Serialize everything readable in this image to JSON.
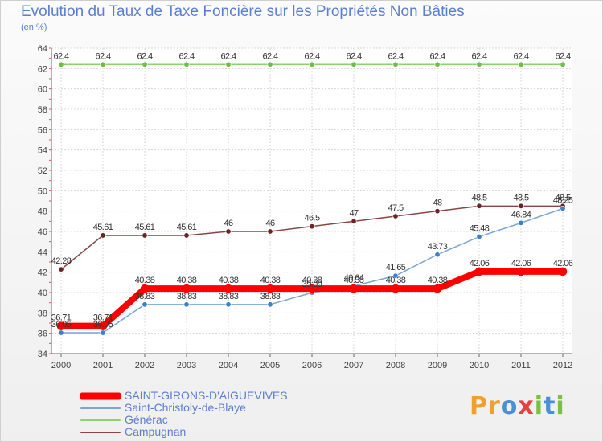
{
  "title": "Evolution du Taux de Taxe Foncière sur les Propriétés Non Bâties",
  "subtitle": "(en %)",
  "logo": {
    "parts": [
      "P",
      "r",
      "o",
      "x",
      "i",
      "t",
      "i"
    ]
  },
  "chart_data": {
    "type": "line",
    "title": "Evolution du Taux de Taxe Foncière sur les Propriétés Non Bâties",
    "ylabel": "(en %)",
    "xlabel": "",
    "ylim": [
      34,
      64
    ],
    "yticks": [
      34,
      36,
      38,
      40,
      42,
      44,
      46,
      48,
      50,
      52,
      54,
      56,
      58,
      60,
      62,
      64
    ],
    "grid": true,
    "legend_position": "bottom-left",
    "x": [
      "2000",
      "2001",
      "2002",
      "2003",
      "2004",
      "2005",
      "2006",
      "2007",
      "2008",
      "2009",
      "2010",
      "2011",
      "2012"
    ],
    "series": [
      {
        "name": "SAINT-GIRONS-D'AIGUEVIVES",
        "color": "#ff0000",
        "marker_color": "#ff0000",
        "width": 8,
        "values": [
          36.71,
          36.71,
          40.38,
          40.38,
          40.38,
          40.38,
          40.38,
          40.38,
          40.38,
          40.38,
          42.06,
          42.06,
          42.06
        ],
        "labels": [
          "36.71",
          "36.71",
          "40.38",
          "40.38",
          "40.38",
          "40.38",
          "40.38",
          "40.38",
          "40.38",
          "40.38",
          "42.06",
          "42.06",
          "42.06"
        ]
      },
      {
        "name": "Saint-Christoly-de-Blaye",
        "color": "#7aa6d6",
        "marker_color": "#3a7fd0",
        "width": 1.5,
        "values": [
          36.05,
          36.05,
          38.83,
          38.83,
          38.83,
          38.83,
          39.99,
          40.64,
          41.65,
          43.73,
          45.48,
          46.84,
          48.25
        ],
        "labels": [
          "36.05",
          "36.05",
          "38.83",
          "38.83",
          "38.83",
          "38.83",
          "39.99",
          "40.64",
          "41.65",
          "43.73",
          "45.48",
          "46.84",
          "48.25"
        ]
      },
      {
        "name": "Générac",
        "color": "#8fd16a",
        "marker_color": "#6cc040",
        "width": 1.5,
        "values": [
          62.4,
          62.4,
          62.4,
          62.4,
          62.4,
          62.4,
          62.4,
          62.4,
          62.4,
          62.4,
          62.4,
          62.4,
          62.4
        ],
        "labels": [
          "62.4",
          "62.4",
          "62.4",
          "62.4",
          "62.4",
          "62.4",
          "62.4",
          "62.4",
          "62.4",
          "62.4",
          "62.4",
          "62.4",
          "62.4"
        ]
      },
      {
        "name": "Campugnan",
        "color": "#8b4545",
        "marker_color": "#6b2323",
        "width": 1.5,
        "values": [
          42.28,
          45.61,
          45.61,
          45.61,
          46,
          46,
          46.5,
          47,
          47.5,
          48,
          48.5,
          48.5,
          48.5
        ],
        "labels": [
          "42.28",
          "45.61",
          "45.61",
          "45.61",
          "46",
          "46",
          "46.5",
          "47",
          "47.5",
          "48",
          "48.5",
          "48.5",
          "48.5"
        ]
      }
    ]
  }
}
